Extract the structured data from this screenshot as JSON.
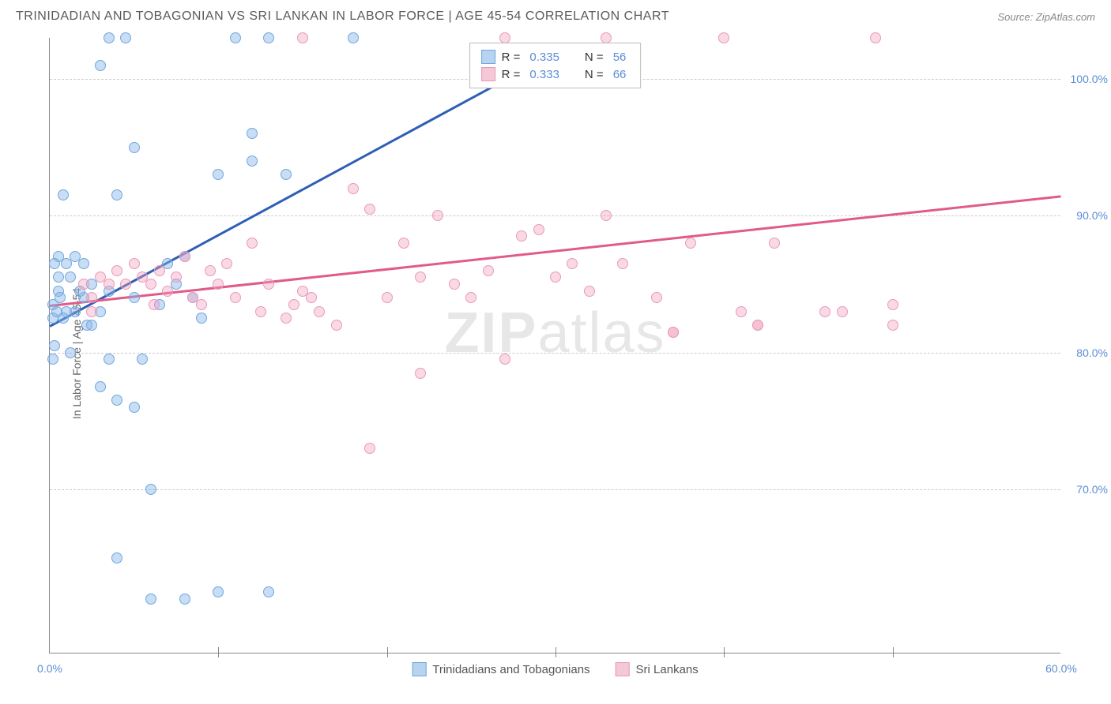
{
  "header": {
    "title": "TRINIDADIAN AND TOBAGONIAN VS SRI LANKAN IN LABOR FORCE | AGE 45-54 CORRELATION CHART",
    "source": "Source: ZipAtlas.com"
  },
  "chart": {
    "type": "scatter",
    "y_axis_label": "In Labor Force | Age 45-54",
    "xlim": [
      0,
      60
    ],
    "ylim": [
      58,
      103
    ],
    "x_ticks": [
      0,
      60
    ],
    "x_tick_labels": [
      "0.0%",
      "60.0%"
    ],
    "x_minor_ticks": [
      10,
      20,
      30,
      40,
      50
    ],
    "y_ticks": [
      70,
      80,
      90,
      100
    ],
    "y_tick_labels": [
      "70.0%",
      "80.0%",
      "90.0%",
      "100.0%"
    ],
    "grid_color": "#cccccc",
    "background_color": "#ffffff",
    "axis_color": "#888888",
    "tick_label_color": "#5b8dd6",
    "watermark": {
      "zip": "ZIP",
      "atlas": "atlas"
    },
    "series": [
      {
        "name": "Trinidadians and Tobagonians",
        "fill_color": "rgba(135,180,230,0.45)",
        "stroke_color": "#6fa8e0",
        "swatch_fill": "#b7d3f0",
        "swatch_border": "#6fa8e0",
        "r_value": "0.335",
        "n_value": "56",
        "trend": {
          "x1": 0,
          "y1": 82,
          "x2": 30,
          "y2": 102,
          "color": "#2e5fb5"
        },
        "points": [
          [
            0.2,
            83.5
          ],
          [
            0.2,
            82.5
          ],
          [
            0.5,
            85.5
          ],
          [
            0.3,
            80.5
          ],
          [
            0.2,
            79.5
          ],
          [
            0.5,
            87
          ],
          [
            0.8,
            91.5
          ],
          [
            0.3,
            86.5
          ],
          [
            0.5,
            84.5
          ],
          [
            1,
            83
          ],
          [
            1,
            86.5
          ],
          [
            1.2,
            85.5
          ],
          [
            1.5,
            87
          ],
          [
            1.5,
            83
          ],
          [
            2,
            86.5
          ],
          [
            2,
            84
          ],
          [
            2.2,
            82
          ],
          [
            2.5,
            85
          ],
          [
            3,
            83
          ],
          [
            3.5,
            84.5
          ],
          [
            3.5,
            79.5
          ],
          [
            3.5,
            103
          ],
          [
            3,
            101
          ],
          [
            4,
            91.5
          ],
          [
            4.5,
            103
          ],
          [
            5,
            95
          ],
          [
            5,
            84
          ],
          [
            5.5,
            79.5
          ],
          [
            5,
            76
          ],
          [
            6,
            70
          ],
          [
            4,
            76.5
          ],
          [
            3,
            77.5
          ],
          [
            6.5,
            83.5
          ],
          [
            7,
            86.5
          ],
          [
            7.5,
            85
          ],
          [
            8,
            87
          ],
          [
            8.5,
            84
          ],
          [
            9,
            82.5
          ],
          [
            10,
            93
          ],
          [
            11,
            103
          ],
          [
            12,
            94
          ],
          [
            12,
            96
          ],
          [
            14,
            93
          ],
          [
            10,
            62.5
          ],
          [
            13,
            103
          ],
          [
            18,
            103
          ],
          [
            6,
            62
          ],
          [
            4,
            65
          ],
          [
            2.5,
            82
          ],
          [
            1.2,
            80
          ],
          [
            0.8,
            82.5
          ],
          [
            0.6,
            84
          ],
          [
            0.4,
            83
          ],
          [
            1.8,
            84.5
          ],
          [
            8,
            62
          ],
          [
            13,
            62.5
          ]
        ]
      },
      {
        "name": "Sri Lankans",
        "fill_color": "rgba(240,160,190,0.4)",
        "stroke_color": "#ec98b8",
        "swatch_fill": "#f5c8d8",
        "swatch_border": "#ec98b8",
        "r_value": "0.333",
        "n_value": "66",
        "trend": {
          "x1": 0,
          "y1": 83.5,
          "x2": 60,
          "y2": 91.5,
          "color": "#e05b8a"
        },
        "points": [
          [
            2,
            85
          ],
          [
            2.5,
            84
          ],
          [
            3,
            85.5
          ],
          [
            3.5,
            85
          ],
          [
            4,
            86
          ],
          [
            4.5,
            85
          ],
          [
            5,
            86.5
          ],
          [
            5.5,
            85.5
          ],
          [
            6,
            85
          ],
          [
            6.5,
            86
          ],
          [
            7,
            84.5
          ],
          [
            7.5,
            85.5
          ],
          [
            8,
            87
          ],
          [
            8.5,
            84
          ],
          [
            9,
            83.5
          ],
          [
            10,
            85
          ],
          [
            10.5,
            86.5
          ],
          [
            11,
            84
          ],
          [
            12,
            88
          ],
          [
            13,
            85
          ],
          [
            14,
            82.5
          ],
          [
            14.5,
            83.5
          ],
          [
            15,
            84.5
          ],
          [
            15,
            103
          ],
          [
            16,
            83
          ],
          [
            17,
            82
          ],
          [
            18,
            92
          ],
          [
            20,
            84
          ],
          [
            19,
            90.5
          ],
          [
            21,
            88
          ],
          [
            22,
            85.5
          ],
          [
            22,
            78.5
          ],
          [
            23,
            90
          ],
          [
            24,
            85
          ],
          [
            25,
            84
          ],
          [
            26,
            86
          ],
          [
            27,
            103
          ],
          [
            27,
            79.5
          ],
          [
            28,
            88.5
          ],
          [
            29,
            89
          ],
          [
            30,
            85.5
          ],
          [
            31,
            86.5
          ],
          [
            32,
            84.5
          ],
          [
            33,
            103
          ],
          [
            33,
            90
          ],
          [
            34,
            86.5
          ],
          [
            36,
            84
          ],
          [
            37,
            81.5
          ],
          [
            38,
            88
          ],
          [
            40,
            103
          ],
          [
            41,
            83
          ],
          [
            42,
            82
          ],
          [
            43,
            88
          ],
          [
            46,
            83
          ],
          [
            47,
            83
          ],
          [
            49,
            103
          ],
          [
            50,
            82
          ],
          [
            50,
            83.5
          ],
          [
            19,
            73
          ],
          [
            37,
            81.5
          ],
          [
            42,
            82
          ],
          [
            15.5,
            84
          ],
          [
            9.5,
            86
          ],
          [
            12.5,
            83
          ],
          [
            6.2,
            83.5
          ],
          [
            2.5,
            83
          ]
        ]
      }
    ],
    "r_legend": {
      "r_prefix": "R =",
      "n_prefix": "N ="
    },
    "bottom_legend": [
      {
        "label": "Trinidadians and Tobagonians",
        "series_idx": 0
      },
      {
        "label": "Sri Lankans",
        "series_idx": 1
      }
    ],
    "label_fontsize": 14,
    "title_fontsize": 16
  }
}
